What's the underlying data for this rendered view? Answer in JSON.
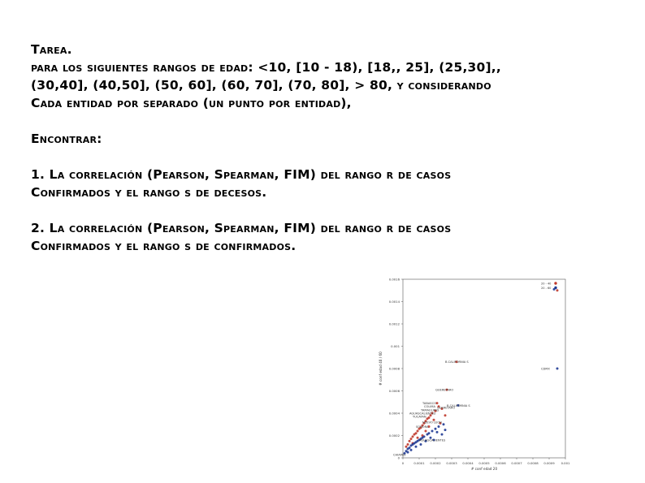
{
  "document": {
    "title": "Tarea.",
    "intro_lines": [
      "para los siguientes rangos de edad: <10, [10 - 18), [18,, 25], (25,30],,",
      "(30,40], (40,50], (50, 60], (60, 70], (70, 80], > 80, y considerando",
      "Cada entidad por separado (un punto por entidad),"
    ],
    "find_label": "Encontrar:",
    "item1_lines": [
      "1. La correlación (Pearson, Spearman, FIM) del rango r de casos",
      "Confirmados y el rango s de decesos."
    ],
    "item2_lines": [
      "2. La correlación (Pearson, Spearman, FIM) del rango r de casos",
      "Confirmados y el rango s de confirmados."
    ]
  },
  "chart_data": {
    "type": "scatter",
    "xlabel": "# conf edad 20",
    "ylabel": "# conf edad 40 / 60",
    "xlim": [
      0,
      0.001
    ],
    "ylim": [
      0,
      0.0016
    ],
    "x_ticks": [
      "0",
      "0.0001",
      "0.0002",
      "0.0003",
      "0.0004",
      "0.0005",
      "0.0006",
      "0.0007",
      "0.0008",
      "0.0009",
      "0.001"
    ],
    "y_ticks": [
      "0",
      "0.0002",
      "0.0004",
      "0.0006",
      "0.0008",
      "0.001",
      "0.0012",
      "0.0014",
      "0.0016"
    ],
    "grid": false,
    "legend_position": "top-right",
    "series": [
      {
        "name": "20 - 40",
        "color": "#c0392b",
        "points": [
          [
            0.00095,
            0.0015
          ],
          [
            0.00033,
            0.00086
          ],
          [
            0.00027,
            0.00061
          ],
          [
            0.00021,
            0.00049
          ],
          [
            0.00022,
            0.00046
          ],
          [
            0.00024,
            0.00044
          ],
          [
            0.0002,
            0.00042
          ],
          [
            0.00018,
            0.0004
          ],
          [
            0.00017,
            0.00038
          ],
          [
            0.00016,
            0.00036
          ],
          [
            0.00015,
            0.00035
          ],
          [
            0.00014,
            0.00033
          ],
          [
            0.00013,
            0.00031
          ],
          [
            0.00012,
            0.00029
          ],
          [
            0.00011,
            0.00027
          ],
          [
            0.0001,
            0.00026
          ],
          [
            9e-05,
            0.00024
          ],
          [
            8e-05,
            0.00022
          ],
          [
            7e-05,
            0.00021
          ],
          [
            6e-05,
            0.00019
          ],
          [
            5e-05,
            0.00017
          ],
          [
            4e-05,
            0.00015
          ],
          [
            3e-05,
            0.00012
          ],
          [
            2e-05,
            0.0001
          ],
          [
            0.00019,
            0.00034
          ],
          [
            0.00023,
            0.00031
          ],
          [
            0.00026,
            0.00038
          ],
          [
            0.00012,
            0.0002
          ],
          [
            9e-05,
            0.00018
          ],
          [
            0.00014,
            0.00024
          ],
          [
            0.00016,
            0.00028
          ],
          [
            6e-05,
            0.00013
          ]
        ]
      },
      {
        "name": "20 - 60",
        "color": "#1f3a93",
        "points": [
          [
            0.00093,
            0.00151
          ],
          [
            0.00095,
            0.0008
          ],
          [
            0.00034,
            0.00047
          ],
          [
            0.00025,
            0.0003
          ],
          [
            0.00022,
            0.00028
          ],
          [
            0.0002,
            0.00026
          ],
          [
            0.00018,
            0.00024
          ],
          [
            0.00016,
            0.00022
          ],
          [
            0.00015,
            0.00021
          ],
          [
            0.00013,
            0.00019
          ],
          [
            0.00012,
            0.00018
          ],
          [
            0.00011,
            0.00017
          ],
          [
            0.0001,
            0.00016
          ],
          [
            9e-05,
            0.00015
          ],
          [
            8e-05,
            0.00014
          ],
          [
            7e-05,
            0.00013
          ],
          [
            6e-05,
            0.00012
          ],
          [
            5e-05,
            0.00011
          ],
          [
            4e-05,
            9e-05
          ],
          [
            3e-05,
            8e-05
          ],
          [
            2e-05,
            6e-05
          ],
          [
            1e-05,
            4e-05
          ],
          [
            0.00017,
            0.00018
          ],
          [
            0.00024,
            0.00021
          ],
          [
            0.00019,
            0.00016
          ],
          [
            0.00014,
            0.00015
          ],
          [
            0.00011,
            0.00012
          ],
          [
            8e-05,
            0.0001
          ],
          [
            5e-05,
            7e-05
          ],
          [
            0.00021,
            0.00023
          ],
          [
            3e-05,
            5e-05
          ],
          [
            0.00026,
            0.00025
          ]
        ]
      }
    ],
    "annotations": [
      {
        "text": "B.CALIFORNIA S",
        "x": 0.00033,
        "y": 0.00086
      },
      {
        "text": "QUERETARO",
        "x": 0.00027,
        "y": 0.00061
      },
      {
        "text": "TABASCO",
        "x": 0.00019,
        "y": 0.00049
      },
      {
        "text": "COLIMA",
        "x": 0.0002,
        "y": 0.00046
      },
      {
        "text": "TAMAULIPAS",
        "x": 0.00018,
        "y": 0.00043
      },
      {
        "text": "AGUASCALIENTES",
        "x": 0.00011,
        "y": 0.0004
      },
      {
        "text": "YUCATAN",
        "x": 0.00013,
        "y": 0.00037
      },
      {
        "text": "B.CALIFORNIA S",
        "x": 0.00034,
        "y": 0.00047
      },
      {
        "text": "QUERETARO",
        "x": 0.00028,
        "y": 0.00045
      },
      {
        "text": "NUEVO LEON",
        "x": 0.00019,
        "y": 0.00032
      },
      {
        "text": "SONORA",
        "x": 0.00015,
        "y": 0.00028
      },
      {
        "text": "CDMX",
        "x": 0.00092,
        "y": 0.0008
      },
      {
        "text": "AGUASCALIENTES",
        "x": 0.00017,
        "y": 0.00016
      },
      {
        "text": "CHIAPAS",
        "x": 1e-05,
        "y": 3e-05
      }
    ]
  }
}
